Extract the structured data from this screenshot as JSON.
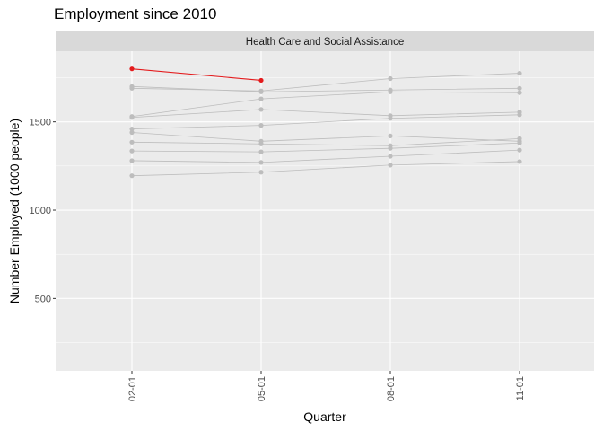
{
  "chart_data": {
    "type": "line",
    "title": "Employment since 2010",
    "facet_label": "Health Care and Social Assistance",
    "xlabel": "Quarter",
    "ylabel": "Number Employed (1000 people)",
    "categories": [
      "02-01",
      "05-01",
      "08-01",
      "11-01"
    ],
    "y_ticks": [
      500,
      1000,
      1500
    ],
    "ylim": [
      90,
      1900
    ],
    "grid": true,
    "legend": "none",
    "colors": {
      "highlight": "#e41a1c",
      "series": "#bdbdbd",
      "panel": "#ebebeb",
      "strip": "#d9d9d9",
      "grid": "#ffffff"
    },
    "series": [
      {
        "values": [
          1690,
          1675,
          1745,
          1775
        ]
      },
      {
        "values": [
          1700,
          1670,
          1680,
          1690
        ]
      },
      {
        "values": [
          1530,
          1630,
          1670,
          1665
        ]
      },
      {
        "values": [
          1525,
          1570,
          1535,
          1555
        ]
      },
      {
        "values": [
          1460,
          1480,
          1520,
          1540
        ]
      },
      {
        "values": [
          1440,
          1390,
          1420,
          1390
        ]
      },
      {
        "values": [
          1385,
          1375,
          1365,
          1405
        ]
      },
      {
        "values": [
          1335,
          1330,
          1350,
          1380
        ]
      },
      {
        "values": [
          1280,
          1270,
          1305,
          1340
        ]
      },
      {
        "values": [
          1195,
          1215,
          1255,
          1275
        ]
      },
      {
        "values": [
          1800,
          1735,
          null,
          null
        ],
        "highlight": true
      }
    ]
  }
}
